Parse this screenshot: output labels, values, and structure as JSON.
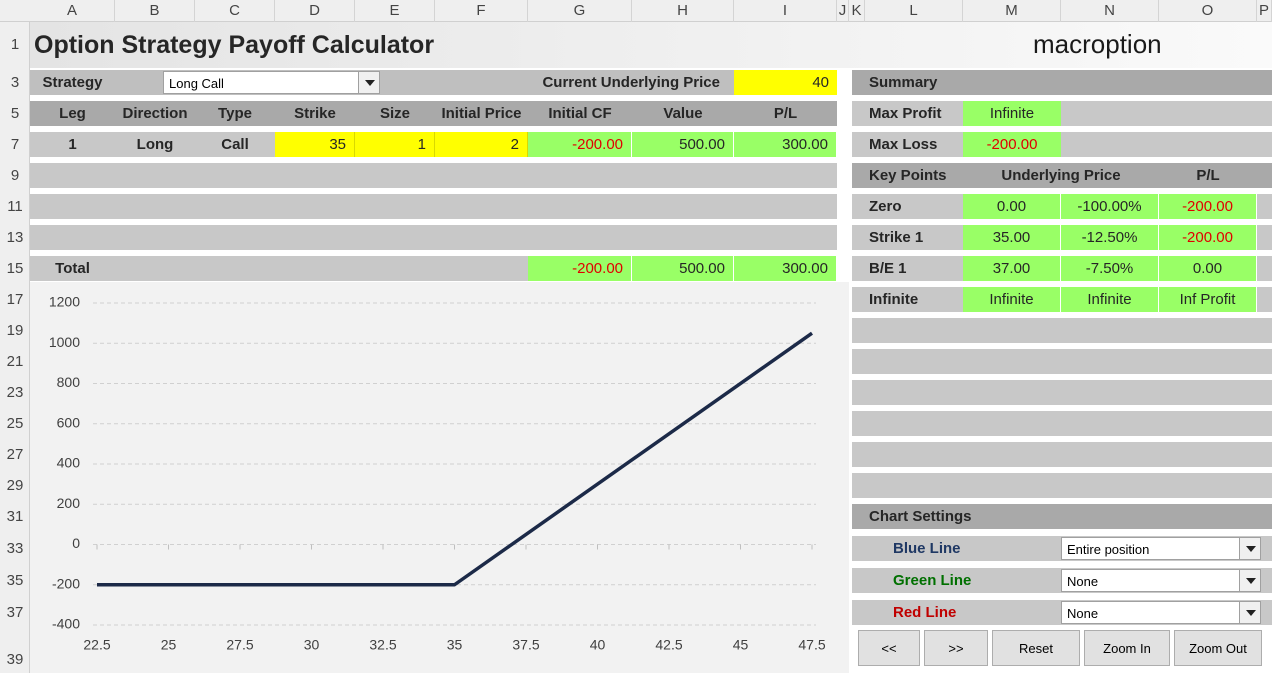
{
  "columns": [
    "A",
    "B",
    "C",
    "D",
    "E",
    "F",
    "G",
    "H",
    "I",
    "J",
    "K",
    "L",
    "M",
    "N",
    "O",
    "P"
  ],
  "rows": [
    "1",
    "3",
    "5",
    "7",
    "9",
    "11",
    "13",
    "15",
    "17",
    "19",
    "21",
    "23",
    "25",
    "27",
    "29",
    "31",
    "33",
    "35",
    "37",
    "39"
  ],
  "title": "Option Strategy Payoff Calculator",
  "logo": "macroption",
  "strategy": {
    "label": "Strategy",
    "value": "Long Call"
  },
  "underlying": {
    "label": "Current Underlying Price",
    "value": "40"
  },
  "legs": {
    "headers": [
      "Leg",
      "Direction",
      "Type",
      "Strike",
      "Size",
      "Initial Price",
      "Initial CF",
      "Value",
      "P/L"
    ],
    "rows": [
      [
        "1",
        "Long",
        "Call",
        "35",
        "1",
        "2",
        "-200.00",
        "500.00",
        "300.00"
      ]
    ]
  },
  "total": {
    "label": "Total",
    "values": [
      "-200.00",
      "500.00",
      "300.00"
    ]
  },
  "summary": {
    "title": "Summary",
    "rows": [
      [
        "Max Profit",
        "Infinite"
      ],
      [
        "Max Loss",
        "-200.00"
      ]
    ]
  },
  "key_points": {
    "headers": [
      "Key Points",
      "Underlying Price",
      "P/L"
    ],
    "rows": [
      [
        "Zero",
        "0.00",
        "-100.00%",
        "-200.00"
      ],
      [
        "Strike 1",
        "35.00",
        "-12.50%",
        "-200.00"
      ],
      [
        "B/E 1",
        "37.00",
        "-7.50%",
        "0.00"
      ],
      [
        "Infinite",
        "Infinite",
        "Infinite",
        "Inf Profit"
      ]
    ]
  },
  "chart_settings": {
    "title": "Chart Settings",
    "rows": [
      [
        "Blue Line",
        "Entire position"
      ],
      [
        "Green Line",
        "None"
      ],
      [
        "Red Line",
        "None"
      ]
    ]
  },
  "buttons": [
    "<<",
    ">>",
    "Reset",
    "Zoom In",
    "Zoom Out"
  ],
  "chart_data": {
    "type": "line",
    "x": [
      22.5,
      35,
      47.5
    ],
    "values": [
      -200,
      -200,
      1050
    ],
    "color": "#1c2a48",
    "xlim": [
      22.5,
      47.5
    ],
    "ylim": [
      -400,
      1200
    ],
    "xticks": [
      22.5,
      25,
      27.5,
      30,
      32.5,
      35,
      37.5,
      40,
      42.5,
      45,
      47.5
    ],
    "yticks": [
      -400,
      -200,
      0,
      200,
      400,
      600,
      800,
      1000,
      1200
    ],
    "grid": true
  }
}
